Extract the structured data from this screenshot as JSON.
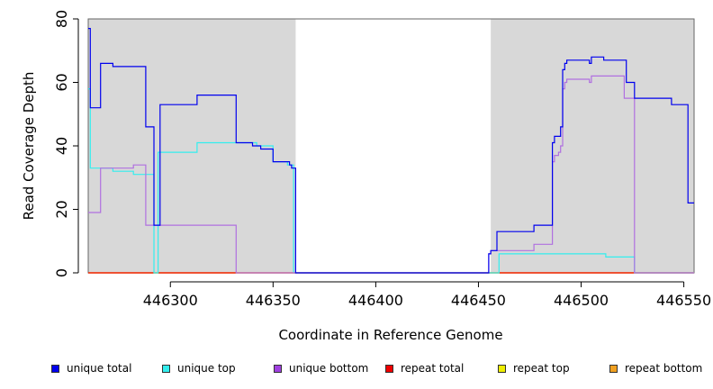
{
  "chart_data": {
    "type": "line",
    "xlabel": "Coordinate in Reference Genome",
    "ylabel": "Read Coverage Depth",
    "xlim": [
      446260,
      446555
    ],
    "ylim": [
      0,
      80
    ],
    "x_ticks": [
      446300,
      446350,
      446400,
      446450,
      446500,
      446550
    ],
    "x_tick_labels": [
      "446300",
      "446350",
      "446400",
      "446450",
      "446500",
      "446550"
    ],
    "y_ticks": [
      0,
      20,
      40,
      60,
      80
    ],
    "y_tick_labels": [
      "0",
      "20",
      "40",
      "60",
      "80"
    ],
    "shaded_regions": [
      [
        446260,
        446361
      ],
      [
        446456,
        446555
      ]
    ],
    "shade_color": "#d8d8d8",
    "series": [
      {
        "name": "unique total",
        "color": "#0000ee",
        "points": [
          [
            446260,
            77
          ],
          [
            446261,
            77
          ],
          [
            446261,
            52
          ],
          [
            446266,
            52
          ],
          [
            446266,
            66
          ],
          [
            446272,
            66
          ],
          [
            446272,
            65
          ],
          [
            446288,
            65
          ],
          [
            446288,
            46
          ],
          [
            446292,
            46
          ],
          [
            446292,
            15
          ],
          [
            446295,
            15
          ],
          [
            446295,
            53
          ],
          [
            446313,
            53
          ],
          [
            446313,
            56
          ],
          [
            446332,
            56
          ],
          [
            446332,
            41
          ],
          [
            446340,
            41
          ],
          [
            446340,
            40
          ],
          [
            446344,
            40
          ],
          [
            446344,
            39
          ],
          [
            446350,
            39
          ],
          [
            446350,
            35
          ],
          [
            446358,
            35
          ],
          [
            446358,
            34
          ],
          [
            446359,
            34
          ],
          [
            446359,
            33
          ],
          [
            446361,
            33
          ],
          [
            446361,
            0
          ],
          [
            446455,
            0
          ],
          [
            446455,
            6
          ],
          [
            446456,
            6
          ],
          [
            446456,
            7
          ],
          [
            446459,
            7
          ],
          [
            446459,
            13
          ],
          [
            446477,
            13
          ],
          [
            446477,
            15
          ],
          [
            446486,
            15
          ],
          [
            446486,
            41
          ],
          [
            446487,
            41
          ],
          [
            446487,
            43
          ],
          [
            446490,
            43
          ],
          [
            446490,
            46
          ],
          [
            446491,
            46
          ],
          [
            446491,
            64
          ],
          [
            446492,
            64
          ],
          [
            446492,
            66
          ],
          [
            446493,
            66
          ],
          [
            446493,
            67
          ],
          [
            446504,
            67
          ],
          [
            446504,
            66
          ],
          [
            446505,
            66
          ],
          [
            446505,
            68
          ],
          [
            446511,
            68
          ],
          [
            446511,
            67
          ],
          [
            446522,
            67
          ],
          [
            446522,
            60
          ],
          [
            446526,
            60
          ],
          [
            446526,
            55
          ],
          [
            446544,
            55
          ],
          [
            446544,
            53
          ],
          [
            446552,
            53
          ],
          [
            446552,
            22
          ],
          [
            446555,
            22
          ]
        ]
      },
      {
        "name": "unique top",
        "color": "#33eeee",
        "points": [
          [
            446260,
            58
          ],
          [
            446261,
            58
          ],
          [
            446261,
            33
          ],
          [
            446266,
            33
          ],
          [
            446266,
            33
          ],
          [
            446272,
            33
          ],
          [
            446272,
            32
          ],
          [
            446282,
            32
          ],
          [
            446282,
            31
          ],
          [
            446292,
            31
          ],
          [
            446292,
            0
          ],
          [
            446294,
            0
          ],
          [
            446294,
            38
          ],
          [
            446313,
            38
          ],
          [
            446313,
            41
          ],
          [
            446332,
            41
          ],
          [
            446332,
            41
          ],
          [
            446342,
            41
          ],
          [
            446342,
            40
          ],
          [
            446350,
            40
          ],
          [
            446350,
            35
          ],
          [
            446357,
            35
          ],
          [
            446357,
            34
          ],
          [
            446360,
            34
          ],
          [
            446360,
            0
          ],
          [
            446460,
            0
          ],
          [
            446460,
            6
          ],
          [
            446505,
            6
          ],
          [
            446505,
            6
          ],
          [
            446512,
            6
          ],
          [
            446512,
            5
          ],
          [
            446526,
            5
          ],
          [
            446526,
            0
          ],
          [
            446555,
            0
          ]
        ]
      },
      {
        "name": "unique bottom",
        "color": "#b070e0",
        "points": [
          [
            446260,
            19
          ],
          [
            446266,
            19
          ],
          [
            446266,
            33
          ],
          [
            446282,
            33
          ],
          [
            446282,
            34
          ],
          [
            446288,
            34
          ],
          [
            446288,
            15
          ],
          [
            446332,
            15
          ],
          [
            446332,
            0
          ],
          [
            446455,
            0
          ],
          [
            446455,
            6
          ],
          [
            446456,
            6
          ],
          [
            446456,
            7
          ],
          [
            446477,
            7
          ],
          [
            446477,
            9
          ],
          [
            446486,
            9
          ],
          [
            446486,
            35
          ],
          [
            446487,
            35
          ],
          [
            446487,
            37
          ],
          [
            446489,
            37
          ],
          [
            446489,
            38
          ],
          [
            446490,
            38
          ],
          [
            446490,
            40
          ],
          [
            446491,
            40
          ],
          [
            446491,
            58
          ],
          [
            446492,
            58
          ],
          [
            446492,
            60
          ],
          [
            446493,
            60
          ],
          [
            446493,
            61
          ],
          [
            446504,
            61
          ],
          [
            446504,
            60
          ],
          [
            446505,
            60
          ],
          [
            446505,
            62
          ],
          [
            446521,
            62
          ],
          [
            446521,
            55
          ],
          [
            446526,
            55
          ],
          [
            446526,
            0
          ],
          [
            446555,
            0
          ]
        ]
      },
      {
        "name": "repeat total",
        "color": "#ee0000",
        "points": [
          [
            446260,
            0
          ],
          [
            446555,
            0
          ]
        ]
      },
      {
        "name": "repeat top",
        "color": "#eeee00",
        "points": [
          [
            446260,
            0
          ],
          [
            446555,
            0
          ]
        ]
      },
      {
        "name": "repeat bottom",
        "color": "#f0a020",
        "points": [
          [
            446260,
            0
          ],
          [
            446555,
            0
          ]
        ]
      }
    ]
  },
  "legend": [
    {
      "label": "unique total",
      "color": "#0000ee"
    },
    {
      "label": "unique top",
      "color": "#33eeee"
    },
    {
      "label": "unique bottom",
      "color": "#a040e0"
    },
    {
      "label": "repeat total",
      "color": "#ee0000"
    },
    {
      "label": "repeat top",
      "color": "#eeee00"
    },
    {
      "label": "repeat bottom",
      "color": "#f0a020"
    }
  ]
}
